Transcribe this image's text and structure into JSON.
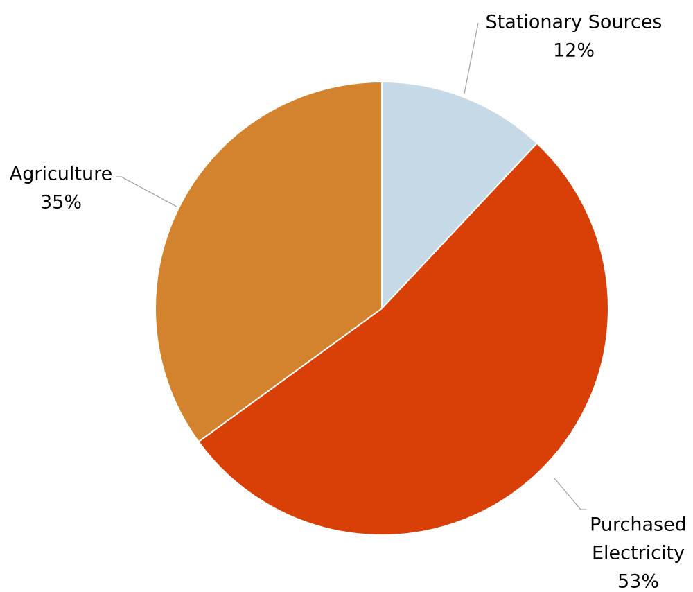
{
  "chart_data": {
    "type": "pie",
    "title": "",
    "start_angle_deg": 0,
    "direction": "clockwise",
    "slices": [
      {
        "label": "Stationary Sources",
        "label_lines": [
          "Stationary Sources"
        ],
        "value": 12,
        "display": "12%",
        "color": "#C5D9E7"
      },
      {
        "label": "Purchased Electricity",
        "label_lines": [
          "Purchased",
          "Electricity"
        ],
        "value": 53,
        "display": "53%",
        "color": "#D84007"
      },
      {
        "label": "Agriculture",
        "label_lines": [
          "Agriculture"
        ],
        "value": 35,
        "display": "35%",
        "color": "#D3832D"
      }
    ]
  }
}
